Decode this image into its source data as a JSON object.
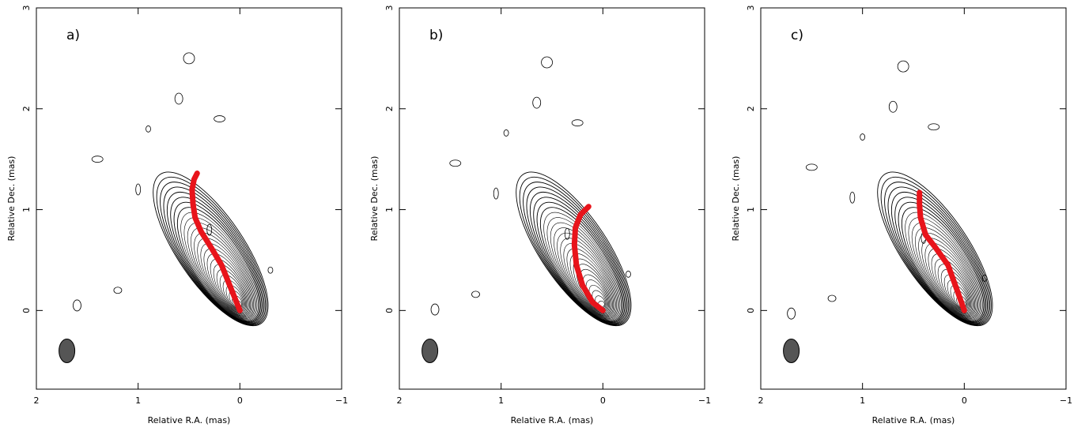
{
  "chart_data": [
    {
      "type": "contour",
      "panel_label": "a)",
      "xlabel": "Relative R.A. (mas)",
      "ylabel": "Relative Dec. (mas)",
      "xlim": [
        2,
        -1
      ],
      "ylim": [
        -0.78,
        3
      ],
      "xticks": [
        2,
        1,
        0,
        {
          "value": -1,
          "label": "−1"
        }
      ],
      "yticks": [
        0,
        1,
        2,
        3
      ],
      "ridge": {
        "color": "#e8141b",
        "x": [
          0,
          0.08,
          0.18,
          0.28,
          0.38,
          0.44,
          0.46,
          0.47,
          0.45,
          0.42
        ],
        "y": [
          0,
          0.2,
          0.45,
          0.62,
          0.78,
          0.92,
          1.05,
          1.2,
          1.3,
          1.36
        ]
      }
    },
    {
      "type": "contour",
      "panel_label": "b)",
      "xlabel": "Relative R.A. (mas)",
      "ylabel": "Relative Dec. (mas)",
      "xlim": [
        2,
        -1
      ],
      "ylim": [
        -0.78,
        3
      ],
      "xticks": [
        2,
        1,
        0,
        {
          "value": -1,
          "label": "−1"
        }
      ],
      "yticks": [
        0,
        1,
        2,
        3
      ],
      "ridge": {
        "color": "#e8141b",
        "x": [
          0,
          0.1,
          0.2,
          0.26,
          0.28,
          0.27,
          0.22,
          0.14
        ],
        "y": [
          0,
          0.08,
          0.25,
          0.45,
          0.65,
          0.82,
          0.95,
          1.03
        ]
      }
    },
    {
      "type": "contour",
      "panel_label": "c)",
      "xlabel": "Relative R.A. (mas)",
      "ylabel": "Relative Dec. (mas)",
      "xlim": [
        2,
        -1
      ],
      "ylim": [
        -0.78,
        3
      ],
      "xticks": [
        2,
        1,
        0,
        {
          "value": -1,
          "label": "−1"
        }
      ],
      "yticks": [
        0,
        1,
        2,
        3
      ],
      "ridge": {
        "color": "#e8141b",
        "x": [
          0,
          0.07,
          0.16,
          0.28,
          0.38,
          0.43,
          0.44,
          0.44
        ],
        "y": [
          0,
          0.2,
          0.45,
          0.62,
          0.75,
          0.92,
          1.05,
          1.17
        ]
      }
    }
  ]
}
